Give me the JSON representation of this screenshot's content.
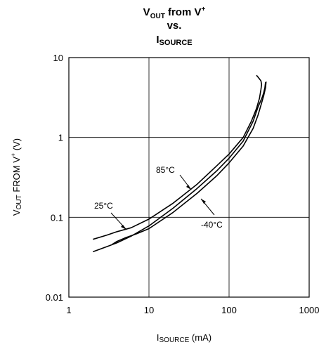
{
  "chart_data": {
    "type": "line",
    "title": {
      "line1_main": "V",
      "line1_sub": "OUT",
      "line1_rest": " from V",
      "line1_sup": "+",
      "line2": "vs.",
      "line3_main": "I",
      "line3_sub": "SOURCE"
    },
    "xlabel": {
      "main": "I",
      "sub": "SOURCE",
      "rest": " (mA)"
    },
    "ylabel": {
      "main": "V",
      "sub": "OUT",
      "rest": " FROM V",
      "sup": "+",
      "end": " (V)"
    },
    "xscale": "log",
    "yscale": "log",
    "xlim": [
      1,
      1000
    ],
    "ylim": [
      0.01,
      10
    ],
    "x_ticks": [
      "1",
      "10",
      "100",
      "1000"
    ],
    "y_ticks": [
      "0.01",
      "0.1",
      "1",
      "10"
    ],
    "grid": true,
    "series": [
      {
        "name": "25°C",
        "x": [
          2,
          3,
          4,
          6,
          10,
          20,
          40,
          70,
          100,
          150,
          200,
          230,
          260,
          270,
          280,
          285
        ],
        "y": [
          0.037,
          0.043,
          0.048,
          0.058,
          0.078,
          0.13,
          0.23,
          0.38,
          0.55,
          0.9,
          1.6,
          2.4,
          3.2,
          3.6,
          4.2,
          4.9
        ]
      },
      {
        "name": "85°C",
        "x": [
          2,
          3,
          4,
          6,
          10,
          20,
          40,
          70,
          100,
          150,
          190,
          220,
          240,
          250,
          255,
          250,
          240,
          230,
          220
        ],
        "y": [
          0.053,
          0.06,
          0.066,
          0.074,
          0.095,
          0.15,
          0.26,
          0.44,
          0.62,
          1.0,
          1.6,
          2.3,
          3.1,
          4.0,
          4.6,
          5.1,
          5.4,
          5.7,
          6.0
        ]
      },
      {
        "name": "-40°C",
        "x": [
          3.5,
          4,
          5,
          7,
          10,
          20,
          40,
          70,
          100,
          150,
          200,
          230,
          255,
          270,
          285,
          290
        ],
        "y": [
          0.046,
          0.05,
          0.055,
          0.062,
          0.072,
          0.115,
          0.2,
          0.33,
          0.48,
          0.78,
          1.3,
          1.9,
          2.7,
          3.3,
          4.2,
          5.0
        ]
      }
    ],
    "annotations": [
      "25°C",
      "85°C",
      "-40°C"
    ],
    "line_color": "#000000",
    "grid_color": "#000000"
  }
}
